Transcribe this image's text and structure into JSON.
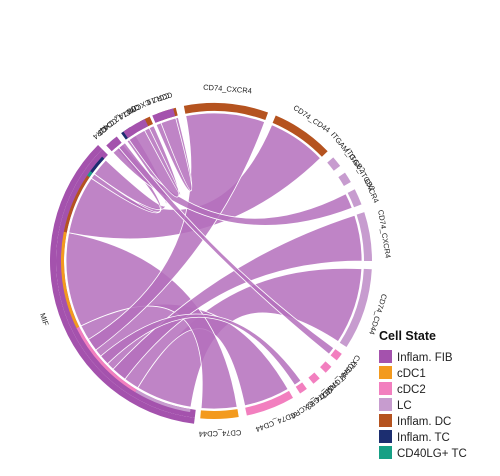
{
  "chart_data": {
    "type": "chord",
    "palette": {
      "Inflam. FIB": "#a452ad",
      "cDC1": "#f39a1e",
      "cDC2": "#f27fbf",
      "LC": "#c79ccf",
      "Inflam. DC": "#b5531f",
      "Inflam. TC": "#1c2e70",
      "CD40LG+ TC": "#16a085"
    },
    "link_color": "#b46fbc",
    "sectors": [
      {
        "label": "MIF",
        "group": "Inflam. FIB",
        "a0": 97,
        "a1": 225,
        "segments": [
          {
            "group": "LC",
            "a0": 99,
            "a1": 121
          },
          {
            "group": "cDC2",
            "a0": 121,
            "a1": 154
          },
          {
            "group": "cDC1",
            "a0": 154,
            "a1": 191
          },
          {
            "group": "Inflam. DC",
            "a0": 191,
            "a1": 214
          },
          {
            "group": "CD40LG+ TC",
            "a0": 214,
            "a1": 216
          },
          {
            "group": "Inflam. TC",
            "a0": 216,
            "a1": 223
          }
        ]
      },
      {
        "label": "CXCR4",
        "group": "CD40LG+ TC",
        "a0": 229,
        "a1": 231
      },
      {
        "label": "CD74_CD44",
        "group": "Inflam. TC",
        "a0": 234,
        "a1": 238
      },
      {
        "label": "CXCR4",
        "group": "Inflam. DC",
        "a0": 242,
        "a1": 246
      },
      {
        "label": "CCR7",
        "group": "Inflam. DC",
        "a0": 249,
        "a1": 256
      },
      {
        "label": "CD74_CXCR4",
        "group": "Inflam. DC",
        "a0": 259,
        "a1": 290
      },
      {
        "label": "CD74_CD44",
        "group": "Inflam. DC",
        "a0": 293,
        "a1": 316
      },
      {
        "label": "ITGAM_ITGB2",
        "group": "LC",
        "a0": 319,
        "a1": 323
      },
      {
        "label": "ITGAX_ITGB2",
        "group": "LC",
        "a0": 326,
        "a1": 330
      },
      {
        "label": "CXCR4",
        "group": "LC",
        "a0": 333,
        "a1": 339
      },
      {
        "label": "CD74_CXCR4",
        "group": "LC",
        "a0": 342,
        "a1": 0
      },
      {
        "label": "CD74_CD44",
        "group": "LC",
        "a0": 3,
        "a1": 33
      },
      {
        "label": "CXCR4",
        "group": "cDC2",
        "a0": 36,
        "a1": 39
      },
      {
        "label": "ITGAX_ITGB2",
        "group": "cDC2",
        "a0": 42,
        "a1": 45
      },
      {
        "label": "ITGAM_ITGB2",
        "group": "cDC2",
        "a0": 48,
        "a1": 51
      },
      {
        "label": "CD74_CXCR4",
        "group": "cDC2",
        "a0": 54,
        "a1": 57
      },
      {
        "label": "CD74_CD44",
        "group": "cDC2",
        "a0": 60,
        "a1": 78
      },
      {
        "label": "CD74_CD44",
        "group": "cDC1",
        "a0": 81,
        "a1": 95
      },
      {
        "label": "C3",
        "group": "Inflam. FIB",
        "a0": 227,
        "a1": 232,
        "side": "left"
      },
      {
        "label": "CXCL12",
        "group": "Inflam. FIB",
        "a0": 235,
        "a1": 244,
        "side": "left"
      },
      {
        "label": "CCL19",
        "group": "Inflam. FIB",
        "a0": 247,
        "a1": 255,
        "side": "left"
      }
    ],
    "links": [
      {
        "s": [
          99,
          121
        ],
        "t": [
          3,
          33
        ],
        "w": 0.85
      },
      {
        "s": [
          121,
          154
        ],
        "t": [
          60,
          78
        ],
        "w": 0.85
      },
      {
        "s": [
          154,
          191
        ],
        "t": [
          81,
          95
        ],
        "w": 0.85
      },
      {
        "s": [
          191,
          214
        ],
        "t": [
          293,
          316
        ],
        "w": 0.85
      },
      {
        "s": [
          216,
          223
        ],
        "t": [
          234,
          238
        ],
        "w": 0.85
      },
      {
        "s": [
          214,
          216
        ],
        "t": [
          229,
          231
        ],
        "w": 0.85
      },
      {
        "s": [
          127,
          133
        ],
        "t": [
          342,
          0
        ],
        "w": 0.85
      },
      {
        "s": [
          136,
          140
        ],
        "t": [
          54,
          57
        ],
        "w": 0.85
      },
      {
        "s": [
          143,
          148
        ],
        "t": [
          259,
          290
        ],
        "w": 0.85
      },
      {
        "s": [
          227,
          232
        ],
        "t": [
          333,
          339
        ],
        "w": 0.85
      },
      {
        "s": [
          235,
          244
        ],
        "t": [
          242,
          246
        ],
        "w": 0.85
      },
      {
        "s": [
          247,
          255
        ],
        "t": [
          249,
          256
        ],
        "w": 0.85
      },
      {
        "s": [
          230,
          233
        ],
        "t": [
          36,
          39
        ],
        "w": 0.85
      }
    ],
    "legend": {
      "title": "Cell State",
      "entries": [
        "Inflam. FIB",
        "cDC1",
        "cDC2",
        "LC",
        "Inflam. DC",
        "Inflam. TC",
        "CD40LG+ TC"
      ],
      "placement": "bottom-right"
    }
  }
}
